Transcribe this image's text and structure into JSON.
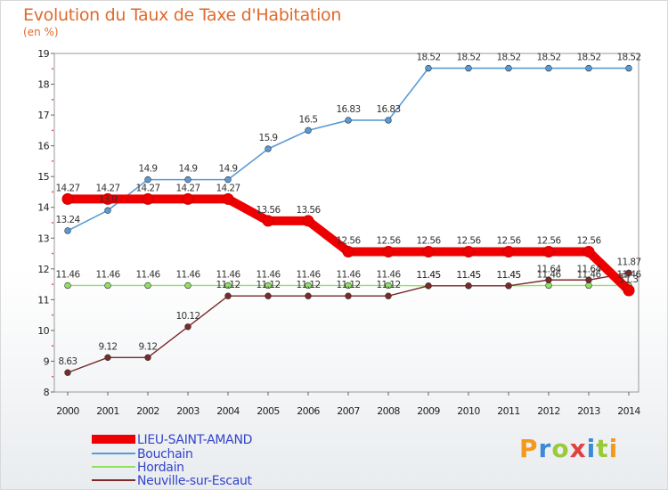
{
  "chart_data": {
    "type": "line",
    "title": "Evolution du Taux de Taxe d'Habitation",
    "ylabel": "(en %)",
    "x": [
      "2000",
      "2001",
      "2002",
      "2003",
      "2004",
      "2005",
      "2006",
      "2007",
      "2008",
      "2009",
      "2010",
      "2011",
      "2012",
      "2013",
      "2014"
    ],
    "ylim": [
      8,
      19
    ],
    "yticks": [
      8,
      9,
      10,
      11,
      12,
      13,
      14,
      15,
      16,
      17,
      18,
      19
    ],
    "grid": false,
    "legend_position": "bottom-left",
    "series": [
      {
        "name": "LIEU-SAINT-AMAND",
        "color": "#ee0000",
        "values": [
          14.27,
          14.27,
          14.27,
          14.27,
          14.27,
          13.56,
          13.56,
          12.56,
          12.56,
          12.56,
          12.56,
          12.56,
          12.56,
          12.56,
          11.3
        ],
        "labels": [
          "14.27",
          "14.27",
          "14.27",
          "14.27",
          "14.27",
          "13.56",
          "13.56",
          "12.56",
          "12.56",
          "12.56",
          "12.56",
          "12.56",
          "12.56",
          "12.56",
          "11.3"
        ]
      },
      {
        "name": "Bouchain",
        "color": "#5b9bd5",
        "values": [
          13.24,
          13.9,
          14.9,
          14.9,
          14.9,
          15.9,
          16.5,
          16.83,
          16.83,
          18.52,
          18.52,
          18.52,
          18.52,
          18.52,
          18.52
        ],
        "labels": [
          "13.24",
          "13.9",
          "14.9",
          "14.9",
          "14.9",
          "15.9",
          "16.5",
          "16.83",
          "16.83",
          "18.52",
          "18.52",
          "18.52",
          "18.52",
          "18.52",
          "18.52"
        ]
      },
      {
        "name": "Hordain",
        "color": "#90e060",
        "values": [
          11.46,
          11.46,
          11.46,
          11.46,
          11.46,
          11.46,
          11.46,
          11.46,
          11.46,
          11.45,
          11.45,
          11.45,
          11.46,
          11.46,
          11.46
        ],
        "labels": [
          "11.46",
          "11.46",
          "11.46",
          "11.46",
          "11.46",
          "11.46",
          "11.46",
          "11.46",
          "11.46",
          "11.45",
          "11.45",
          "11.45",
          "11.46",
          "11.46",
          "11.46"
        ]
      },
      {
        "name": "Neuville-sur-Escaut",
        "color": "#7a2a2a",
        "values": [
          8.63,
          9.12,
          9.12,
          10.12,
          11.12,
          11.12,
          11.12,
          11.12,
          11.12,
          11.45,
          11.45,
          11.45,
          11.64,
          11.64,
          11.87
        ],
        "labels": [
          "8.63",
          "9.12",
          "9.12",
          "10.12",
          "11.12",
          "11.12",
          "11.12",
          "11.12",
          "11.12",
          "11.45",
          "11.45",
          "11.45",
          "11.64",
          "11.64",
          "11.87"
        ]
      }
    ]
  },
  "logo": {
    "text": "Proxiti",
    "colors": [
      "#f29a1f",
      "#3a8ad6",
      "#9ac93a",
      "#e04040",
      "#3a8ad6",
      "#9ac93a",
      "#f29a1f"
    ]
  }
}
